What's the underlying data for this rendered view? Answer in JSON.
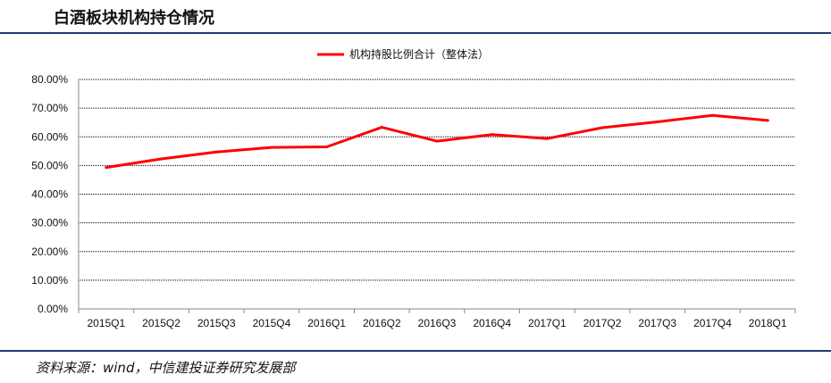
{
  "header": {
    "title": "白酒板块机构持仓情况"
  },
  "footer": {
    "source": "资料来源：wind，中信建投证券研究发展部"
  },
  "chart_data": {
    "type": "line",
    "title": "",
    "xlabel": "",
    "ylabel": "",
    "categories": [
      "2015Q1",
      "2015Q2",
      "2015Q3",
      "2015Q4",
      "2016Q1",
      "2016Q2",
      "2016Q3",
      "2016Q4",
      "2017Q1",
      "2017Q2",
      "2017Q3",
      "2017Q4",
      "2018Q1"
    ],
    "yticks": [
      "0.00%",
      "10.00%",
      "20.00%",
      "30.00%",
      "40.00%",
      "50.00%",
      "60.00%",
      "70.00%",
      "80.00%"
    ],
    "ylim": [
      0,
      80
    ],
    "grid": true,
    "legend_position": "top-center",
    "series": [
      {
        "name": "机构持股比例合计（整体法）",
        "color": "#ff0000",
        "values": [
          49.3,
          52.3,
          54.7,
          56.3,
          56.5,
          63.3,
          58.5,
          60.8,
          59.4,
          63.2,
          65.2,
          67.5,
          65.7
        ]
      }
    ]
  }
}
